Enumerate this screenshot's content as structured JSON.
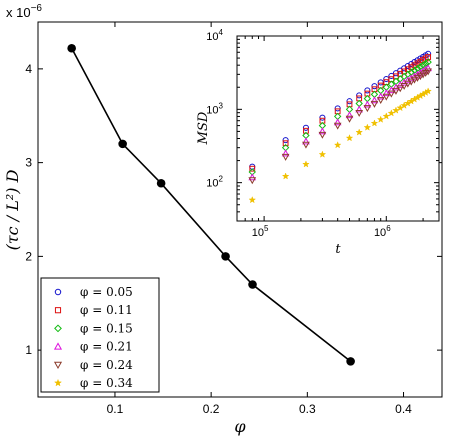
{
  "chart_data": [
    {
      "type": "line",
      "xlabel": "φ",
      "ylabel": "(τc / L²) D",
      "exponent_label": "x 10",
      "exponent_power": "−6",
      "xlim": [
        0.02,
        0.44
      ],
      "ylim": [
        0.5,
        4.5
      ],
      "xticks": [
        0.1,
        0.2,
        0.3,
        0.4
      ],
      "xtick_labels": [
        "0.1",
        "0.2",
        "0.3",
        "0.4"
      ],
      "yticks": [
        1,
        2,
        3,
        4
      ],
      "ytick_labels": [
        "1",
        "2",
        "3",
        "4"
      ],
      "series": [
        {
          "x": [
            0.055,
            0.108,
            0.148,
            0.215,
            0.243,
            0.345
          ],
          "y": [
            4.22,
            3.2,
            2.78,
            2.0,
            1.7,
            0.88
          ]
        }
      ],
      "grid": false
    },
    {
      "type": "scatter",
      "xlabel": "t",
      "ylabel": "MSD",
      "x_scale": "log",
      "y_scale": "log",
      "xlim": [
        60000,
        2700000
      ],
      "ylim": [
        30,
        10000
      ],
      "xtick_labels": [
        [
          "10",
          "5"
        ],
        [
          "10",
          "6"
        ]
      ],
      "ytick_labels": [
        [
          "10",
          "2"
        ],
        [
          "10",
          "3"
        ],
        [
          "10",
          "4"
        ]
      ],
      "x": [
        80000,
        150000,
        220000,
        300000,
        400000,
        500000,
        600000,
        700000,
        800000,
        900000,
        1000000,
        1100000,
        1200000,
        1300000,
        1400000,
        1500000,
        1600000,
        1700000,
        1800000,
        1900000,
        2000000,
        2100000,
        2200000
      ],
      "series": [
        {
          "name": "φ = 0.05",
          "color": "#1010cc",
          "marker": "circle",
          "values": [
            165,
            380,
            560,
            770,
            1030,
            1290,
            1550,
            1810,
            2070,
            2330,
            2590,
            2850,
            3110,
            3370,
            3630,
            3890,
            4150,
            4410,
            4670,
            4930,
            5190,
            5450,
            5710
          ]
        },
        {
          "name": "φ = 0.11",
          "color": "#dd1010",
          "marker": "square",
          "values": [
            155,
            345,
            510,
            700,
            940,
            1170,
            1410,
            1640,
            1880,
            2110,
            2350,
            2580,
            2820,
            3050,
            3290,
            3520,
            3760,
            3990,
            4230,
            4460,
            4700,
            4930,
            5170
          ]
        },
        {
          "name": "φ = 0.15",
          "color": "#10bb10",
          "marker": "diamond",
          "values": [
            140,
            300,
            440,
            600,
            800,
            1000,
            1200,
            1400,
            1600,
            1800,
            2000,
            2200,
            2400,
            2600,
            2800,
            3000,
            3200,
            3400,
            3600,
            3800,
            4000,
            4200,
            4400
          ]
        },
        {
          "name": "φ = 0.21",
          "color": "#dd10dd",
          "marker": "triangle-up",
          "values": [
            118,
            250,
            365,
            500,
            665,
            830,
            995,
            1160,
            1325,
            1490,
            1655,
            1820,
            1985,
            2150,
            2315,
            2480,
            2645,
            2810,
            2975,
            3140,
            3305,
            3470,
            3635
          ]
        },
        {
          "name": "φ = 0.24",
          "color": "#8b3a2a",
          "marker": "triangle-down",
          "values": [
            108,
            225,
            330,
            450,
            600,
            745,
            895,
            1040,
            1190,
            1340,
            1490,
            1640,
            1790,
            1940,
            2090,
            2240,
            2390,
            2540,
            2690,
            2840,
            2990,
            3140,
            3290
          ]
        },
        {
          "name": "φ = 0.34",
          "color": "#f0c000",
          "marker": "star",
          "values": [
            58,
            122,
            178,
            242,
            325,
            405,
            485,
            565,
            645,
            725,
            805,
            885,
            965,
            1045,
            1125,
            1205,
            1285,
            1365,
            1445,
            1525,
            1605,
            1685,
            1765
          ]
        }
      ]
    }
  ]
}
